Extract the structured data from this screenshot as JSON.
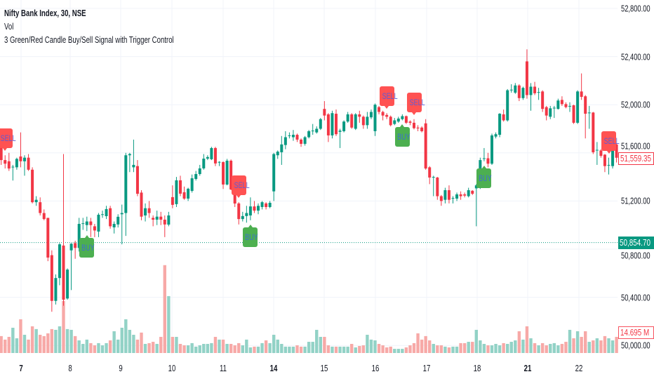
{
  "legend": {
    "title": "Nifty Bank Index, 30, NSE",
    "volume": "Vol",
    "indicator": "3 Green/Red Candle Buy/Sell Signal with Trigger Control"
  },
  "price_axis": {
    "ticks": [
      "52,800.00",
      "52,400.00",
      "52,000.00",
      "51,600.00",
      "51,200.00",
      "50,800.00",
      "50,400.00",
      "50,000.00"
    ],
    "last_price": "51,559.35",
    "crosshair_price": "50,854.70",
    "volume_label": "14.695 M"
  },
  "time_axis": {
    "ticks": [
      {
        "label": "7",
        "bold": true
      },
      {
        "label": "8",
        "bold": false
      },
      {
        "label": "9",
        "bold": false
      },
      {
        "label": "10",
        "bold": false
      },
      {
        "label": "11",
        "bold": false
      },
      {
        "label": "14",
        "bold": true
      },
      {
        "label": "15",
        "bold": false
      },
      {
        "label": "16",
        "bold": false
      },
      {
        "label": "17",
        "bold": false
      },
      {
        "label": "18",
        "bold": false
      },
      {
        "label": "21",
        "bold": true
      },
      {
        "label": "22",
        "bold": false
      }
    ]
  },
  "colors": {
    "up": "#089981",
    "down": "#f23645",
    "vol_up": "#92d2c6",
    "vol_down": "#f7a9a7",
    "grid": "#f0f3fa",
    "sell_bg": "#ff5252",
    "buy_bg": "#4caf50",
    "signal_text": "#5b5bd6"
  },
  "chart_data": {
    "type": "candlestick",
    "interval": "30",
    "ylim": [
      50000,
      52800
    ],
    "grid": true,
    "horizontal_line": 50854.7,
    "candles": [
      [
        51720,
        51760,
        51500,
        51540
      ],
      [
        51540,
        51580,
        51470,
        51510
      ],
      [
        51530,
        51600,
        51450,
        51470
      ],
      [
        51480,
        51500,
        51370,
        51485
      ],
      [
        51480,
        51560,
        51460,
        51550
      ],
      [
        51570,
        51770,
        51480,
        51530
      ],
      [
        51530,
        51580,
        51410,
        51560
      ],
      [
        51560,
        51590,
        51450,
        51460
      ],
      [
        51460,
        51480,
        51180,
        51190
      ],
      [
        51190,
        51240,
        51160,
        51210
      ],
      [
        51190,
        51230,
        51080,
        51100
      ],
      [
        51100,
        51130,
        51040,
        51050
      ],
      [
        51060,
        51060,
        50700,
        50730
      ],
      [
        50750,
        50790,
        50280,
        50370
      ],
      [
        50370,
        50590,
        50340,
        50560
      ],
      [
        50560,
        50850,
        50500,
        50840
      ],
      [
        50830,
        51590,
        50330,
        50380
      ],
      [
        50390,
        50640,
        50380,
        50630
      ],
      [
        50790,
        50850,
        50460,
        50845
      ],
      [
        50850,
        50870,
        50720,
        50810
      ],
      [
        50810,
        51060,
        50780,
        51010
      ],
      [
        51010,
        51060,
        50960,
        51015
      ],
      [
        51000,
        51070,
        50950,
        51030
      ],
      [
        51030,
        51060,
        50900,
        51000
      ],
      [
        50990,
        51010,
        50900,
        50955
      ],
      [
        50946,
        51100,
        50900,
        51086
      ],
      [
        51086,
        51120,
        51060,
        51090
      ],
      [
        51074,
        51160,
        51050,
        51133
      ],
      [
        51140,
        51160,
        50970,
        50990
      ],
      [
        50981,
        51030,
        50930,
        51010
      ],
      [
        51005,
        51090,
        50980,
        51069
      ],
      [
        51090,
        51170,
        50840,
        51100
      ],
      [
        51100,
        51600,
        50910,
        51580
      ],
      [
        51580,
        51600,
        51440,
        51590
      ],
      [
        51480,
        51710,
        51440,
        51500
      ],
      [
        51490,
        51540,
        51240,
        51260
      ],
      [
        51270,
        51290,
        51040,
        51070
      ],
      [
        51080,
        51180,
        51030,
        51140
      ],
      [
        51140,
        51200,
        51060,
        51100
      ],
      [
        51060,
        51080,
        50990,
        51045
      ],
      [
        51045,
        51120,
        51000,
        51070
      ],
      [
        51070,
        51110,
        51000,
        51045
      ],
      [
        51045,
        51080,
        50900,
        51005
      ],
      [
        51004,
        51110,
        50990,
        51080
      ],
      [
        51232,
        51330,
        51140,
        51168
      ],
      [
        51174,
        51400,
        51150,
        51372
      ],
      [
        51372,
        51410,
        51240,
        51261
      ],
      [
        51273,
        51320,
        51210,
        51220
      ],
      [
        51220,
        51310,
        51200,
        51302
      ],
      [
        51284,
        51420,
        51270,
        51389
      ],
      [
        51383,
        51450,
        51370,
        51424
      ],
      [
        51424,
        51500,
        51410,
        51471
      ],
      [
        51471,
        51590,
        51460,
        51552
      ],
      [
        51552,
        51580,
        51540,
        51565
      ],
      [
        51547,
        51650,
        51540,
        51640
      ],
      [
        51640,
        51650,
        51490,
        51512
      ],
      [
        51520,
        51530,
        51490,
        51525
      ],
      [
        51523,
        51530,
        51300,
        51337
      ],
      [
        51337,
        51550,
        51330,
        51535
      ],
      [
        51535,
        51545,
        51290,
        51296
      ],
      [
        51337,
        51350,
        51150,
        51179
      ],
      [
        51180,
        51190,
        51005,
        51050
      ],
      [
        51050,
        51110,
        51030,
        51075
      ],
      [
        51075,
        51160,
        51020,
        51100
      ],
      [
        51080,
        51230,
        51040,
        51155
      ],
      [
        51155,
        51200,
        51100,
        51120
      ],
      [
        51120,
        51180,
        51090,
        51160
      ],
      [
        51150,
        51200,
        51130,
        51190
      ],
      [
        51180,
        51190,
        51130,
        51150
      ],
      [
        51150,
        51200,
        51140,
        51185
      ],
      [
        51280,
        51600,
        51200,
        51590
      ],
      [
        51580,
        51620,
        51550,
        51610
      ],
      [
        51605,
        51740,
        51500,
        51670
      ],
      [
        51665,
        51780,
        51630,
        51730
      ],
      [
        51740,
        51770,
        51720,
        51745
      ],
      [
        51730,
        51790,
        51700,
        51750
      ],
      [
        51750,
        51760,
        51690,
        51710
      ],
      [
        51710,
        51720,
        51650,
        51675
      ],
      [
        51675,
        51740,
        51660,
        51730
      ],
      [
        51730,
        51790,
        51720,
        51780
      ],
      [
        51780,
        51840,
        51750,
        51785
      ],
      [
        51770,
        51820,
        51760,
        51800
      ],
      [
        51800,
        51890,
        51790,
        51880
      ],
      [
        51965,
        52030,
        51870,
        51910
      ],
      [
        51920,
        51930,
        51690,
        51745
      ],
      [
        51745,
        51950,
        51720,
        51930
      ],
      [
        51925,
        51960,
        51740,
        51755
      ],
      [
        51775,
        51800,
        51640,
        51785
      ],
      [
        51780,
        51870,
        51770,
        51860
      ],
      [
        51860,
        51940,
        51850,
        51920
      ],
      [
        51920,
        51930,
        51800,
        51810
      ],
      [
        51800,
        51930,
        51790,
        51920
      ],
      [
        51920,
        51950,
        51850,
        51900
      ],
      [
        51900,
        51910,
        51800,
        51830
      ],
      [
        51830,
        51940,
        51800,
        51900
      ],
      [
        51895,
        51960,
        51880,
        51940
      ],
      [
        51780,
        52010,
        51740,
        52000
      ],
      [
        51980,
        51990,
        51920,
        51940
      ],
      [
        51940,
        51950,
        51870,
        51910
      ],
      [
        51915,
        51930,
        51880,
        51900
      ],
      [
        51900,
        51910,
        51820,
        51830
      ],
      [
        51840,
        51890,
        51830,
        51870
      ],
      [
        51860,
        51900,
        51850,
        51885
      ],
      [
        51880,
        51920,
        51870,
        51905
      ],
      [
        51905,
        51910,
        51840,
        51850
      ],
      [
        51860,
        51870,
        51830,
        51850
      ],
      [
        51850,
        51880,
        51795,
        51805
      ],
      [
        51810,
        51830,
        51780,
        51803
      ],
      [
        51810,
        51820,
        51770,
        51780
      ],
      [
        51845,
        51880,
        51460,
        51470
      ],
      [
        51480,
        51490,
        51340,
        51395
      ],
      [
        51395,
        51410,
        51240,
        51400
      ],
      [
        51395,
        51400,
        51210,
        51240
      ],
      [
        51240,
        51250,
        51160,
        51200
      ],
      [
        51210,
        51310,
        51180,
        51290
      ],
      [
        51290,
        51330,
        51180,
        51210
      ],
      [
        51220,
        51240,
        51180,
        51225
      ],
      [
        51220,
        51270,
        51200,
        51255
      ],
      [
        51255,
        51280,
        51210,
        51240
      ],
      [
        51255,
        51270,
        51230,
        51245
      ],
      [
        51240,
        51310,
        51230,
        51290
      ],
      [
        51285,
        51290,
        51250,
        51260
      ],
      [
        51305,
        51340,
        50990,
        51330
      ],
      [
        51325,
        51560,
        51300,
        51540
      ],
      [
        51550,
        51640,
        51530,
        51555
      ],
      [
        51555,
        51600,
        51480,
        51510
      ],
      [
        51510,
        51760,
        51500,
        51745
      ],
      [
        51735,
        51770,
        51720,
        51755
      ],
      [
        51750,
        51930,
        51730,
        51925
      ],
      [
        51920,
        51960,
        51860,
        51870
      ],
      [
        51870,
        52130,
        51860,
        52120
      ],
      [
        52120,
        52170,
        52100,
        52125
      ],
      [
        52100,
        52180,
        52090,
        52160
      ],
      [
        52160,
        52170,
        52030,
        52055
      ],
      [
        52055,
        52150,
        52040,
        52140
      ],
      [
        52360,
        52460,
        52050,
        52080
      ],
      [
        52080,
        52180,
        51950,
        52150
      ],
      [
        52150,
        52190,
        52080,
        52095
      ],
      [
        52100,
        52140,
        52040,
        52105
      ],
      [
        52110,
        52120,
        51940,
        51965
      ],
      [
        51980,
        51990,
        51870,
        51910
      ],
      [
        51900,
        51990,
        51880,
        51970
      ],
      [
        51970,
        51990,
        51890,
        51975
      ],
      [
        51965,
        52050,
        51960,
        52035
      ],
      [
        52040,
        52070,
        51990,
        52005
      ],
      [
        52005,
        52020,
        51970,
        51980
      ],
      [
        51990,
        52020,
        51940,
        51990
      ],
      [
        51995,
        52000,
        51840,
        51850
      ],
      [
        51850,
        52120,
        51840,
        52110
      ],
      [
        52110,
        52260,
        52040,
        52065
      ],
      [
        52070,
        52080,
        51720,
        51925
      ],
      [
        51930,
        51990,
        51800,
        51935
      ],
      [
        51935,
        51940,
        51590,
        51605
      ],
      [
        51620,
        51690,
        51500,
        51625
      ],
      [
        51620,
        51630,
        51560,
        51575
      ],
      [
        51585,
        51590,
        51440,
        51490
      ],
      [
        51495,
        51560,
        51420,
        51500
      ],
      [
        51490,
        51670,
        51470,
        51665
      ],
      [
        51670,
        51680,
        51520,
        51559.35
      ]
    ],
    "volume_m": [
      15.4,
      12.2,
      14.7,
      23.0,
      13.4,
      30.7,
      16.6,
      12.2,
      24.3,
      21.8,
      16.6,
      15.4,
      17.9,
      21.8,
      21.1,
      24.3,
      47.4,
      21.8,
      21.1,
      15.4,
      11.5,
      8.3,
      12.2,
      9.0,
      7.0,
      9.0,
      7.0,
      9.0,
      11.5,
      19.8,
      12.2,
      23.0,
      30.7,
      21.1,
      16.6,
      12.2,
      18.6,
      8.3,
      9.0,
      10.2,
      8.3,
      14.7,
      80.0,
      51.8,
      14.7,
      14.7,
      8.3,
      7.0,
      7.0,
      9.0,
      5.8,
      7.0,
      8.3,
      8.3,
      9.0,
      14.7,
      12.2,
      12.2,
      8.3,
      8.3,
      7.0,
      9.0,
      7.0,
      12.2,
      5.1,
      5.8,
      5.8,
      9.0,
      11.5,
      9.0,
      16.6,
      12.2,
      8.3,
      5.8,
      5.8,
      5.8,
      7.0,
      5.8,
      5.8,
      10.2,
      10.2,
      21.1,
      14.7,
      14.7,
      7.0,
      5.8,
      5.8,
      5.8,
      5.8,
      5.8,
      8.3,
      5.1,
      6.4,
      7.0,
      16.6,
      12.2,
      11.5,
      8.3,
      7.0,
      5.1,
      5.8,
      3.8,
      3.8,
      3.8,
      5.1,
      7.0,
      9.0,
      17.9,
      12.2,
      15.4,
      11.5,
      8.3,
      7.0,
      7.0,
      5.8,
      5.1,
      5.8,
      5.8,
      9.0,
      9.0,
      10.2,
      10.2,
      21.1,
      11.5,
      8.3,
      7.0,
      7.0,
      8.3,
      7.0,
      9.0,
      8.3,
      10.2,
      11.5,
      19.8,
      12.2,
      24.3,
      13.4,
      9.0,
      7.0,
      9.0,
      7.0,
      8.3,
      9.0,
      7.0,
      8.3,
      10.2,
      21.1,
      13.4,
      19.8,
      14.7,
      19.8,
      10.2,
      11.5,
      13.4,
      11.5,
      15.4,
      13.4,
      11.5,
      14.695
    ],
    "signals": [
      {
        "type": "SELL",
        "bar": 1,
        "label": "SELL"
      },
      {
        "type": "BUY",
        "bar": 22,
        "label": "BUY"
      },
      {
        "type": "SELL",
        "bar": 61,
        "label": "SELL"
      },
      {
        "type": "BUY",
        "bar": 64,
        "label": "BUY"
      },
      {
        "type": "SELL",
        "bar": 99,
        "label": "SELL"
      },
      {
        "type": "BUY",
        "bar": 103,
        "label": "BUY"
      },
      {
        "type": "SELL",
        "bar": 106,
        "label": "SELL"
      },
      {
        "type": "BUY",
        "bar": 124,
        "label": "BUY"
      },
      {
        "type": "SELL",
        "bar": 156,
        "label": "SELL"
      }
    ]
  }
}
